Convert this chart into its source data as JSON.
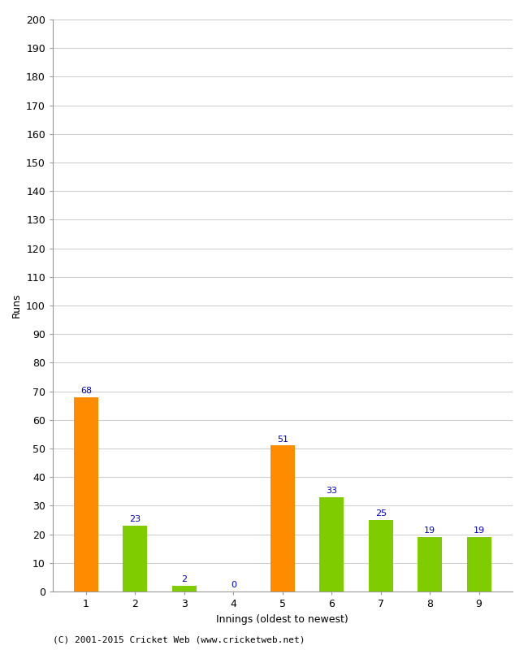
{
  "xlabel": "Innings (oldest to newest)",
  "ylabel": "Runs",
  "categories": [
    "1",
    "2",
    "3",
    "4",
    "5",
    "6",
    "7",
    "8",
    "9"
  ],
  "values": [
    68,
    23,
    2,
    0,
    51,
    33,
    25,
    19,
    19
  ],
  "bar_colors": [
    "#FF8C00",
    "#7FCC00",
    "#7FCC00",
    "#7FCC00",
    "#FF8C00",
    "#7FCC00",
    "#7FCC00",
    "#7FCC00",
    "#7FCC00"
  ],
  "ylim": [
    0,
    200
  ],
  "yticks": [
    0,
    10,
    20,
    30,
    40,
    50,
    60,
    70,
    80,
    90,
    100,
    110,
    120,
    130,
    140,
    150,
    160,
    170,
    180,
    190,
    200
  ],
  "label_color": "#0000CC",
  "label_fontsize": 8,
  "axis_fontsize": 9,
  "footer_text": "(C) 2001-2015 Cricket Web (www.cricketweb.net)",
  "footer_fontsize": 8,
  "background_color": "#FFFFFF",
  "grid_color": "#CCCCCC",
  "bar_width": 0.5
}
